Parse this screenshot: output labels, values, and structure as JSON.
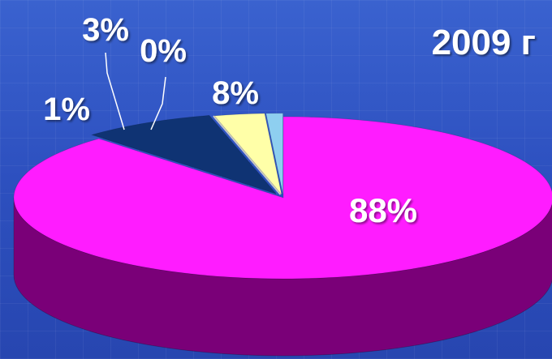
{
  "title": "2009 г",
  "chart_data": {
    "type": "pie",
    "title": "2009 г",
    "slices": [
      {
        "label": "88%",
        "value": 88,
        "color": "#ff1cff",
        "side_color": "#7a0078"
      },
      {
        "label": "8%",
        "value": 8,
        "color": "#0f3373",
        "side_color": "#0a234f"
      },
      {
        "label": "0%",
        "value": 0,
        "color": "#c8c8c8",
        "side_color": "#8a8a8a"
      },
      {
        "label": "3%",
        "value": 3,
        "color": "#ffffa8",
        "side_color": "#b3b36e"
      },
      {
        "label": "1%",
        "value": 1,
        "color": "#8ecff0",
        "side_color": "#5a91ad"
      }
    ],
    "legend": "none",
    "style": "3d-exploded"
  }
}
